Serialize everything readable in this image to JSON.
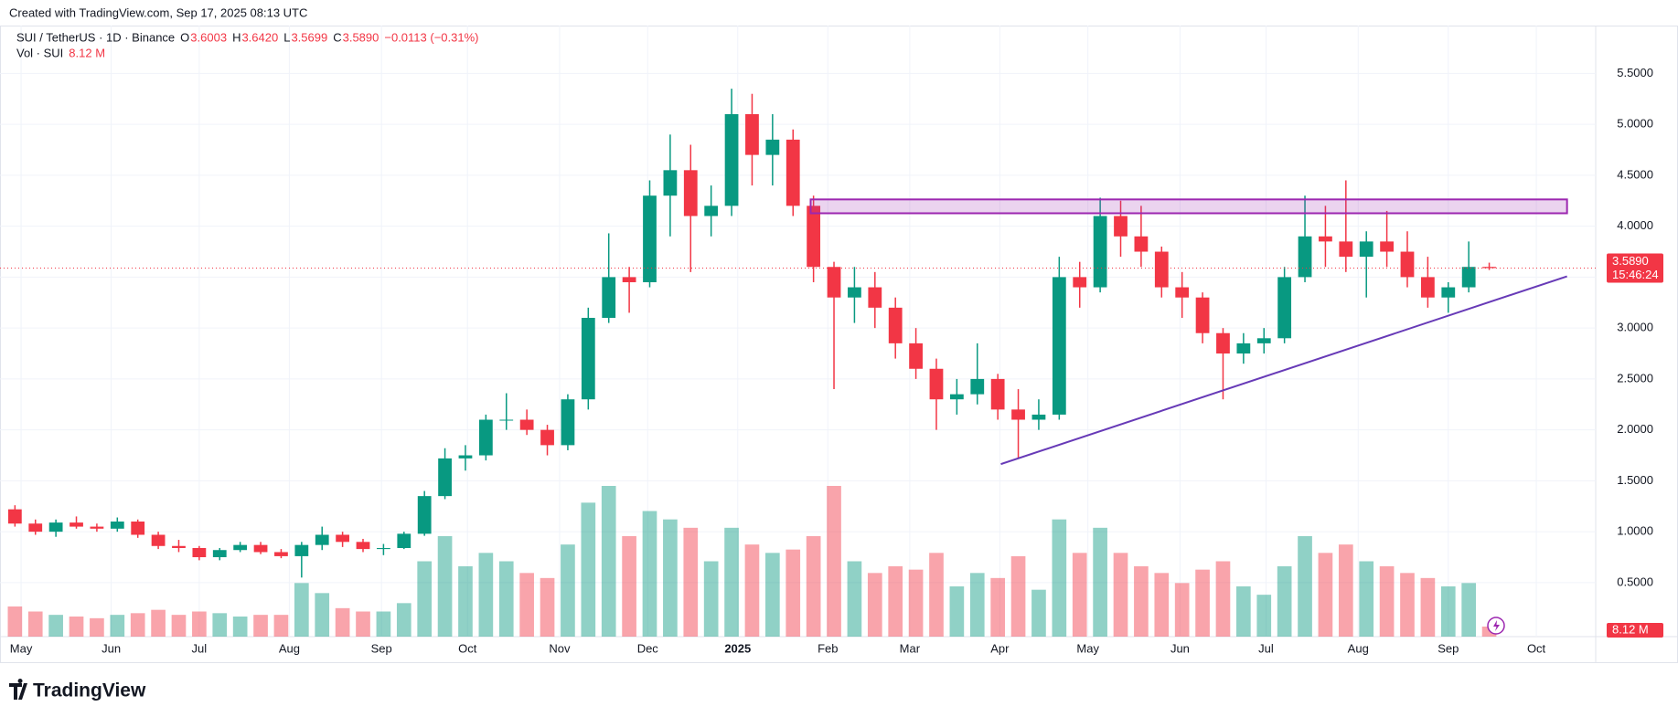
{
  "header": {
    "created": "Created with TradingView.com, Sep 17, 2025 08:13 UTC",
    "brand": "TradingView"
  },
  "chart_data": {
    "type": "candlestick",
    "legend": {
      "symbol": "SUI / TetherUS · 1D · Binance",
      "fields": [
        {
          "key": "O",
          "text": "3.6003"
        },
        {
          "key": "H",
          "text": "3.6420"
        },
        {
          "key": "L",
          "text": "3.5699"
        },
        {
          "key": "C",
          "text": "3.5890"
        }
      ],
      "change": "−0.0113 (−0.31%)",
      "volume_name": "Vol · SUI",
      "volume_text": "8.12 M"
    },
    "up_color": "#089981",
    "down_color": "#f23645",
    "ohlc": [
      [
        1.22,
        1.26,
        1.05,
        1.08
      ],
      [
        1.08,
        1.12,
        0.97,
        1.0
      ],
      [
        1.0,
        1.12,
        0.95,
        1.09
      ],
      [
        1.09,
        1.15,
        1.03,
        1.05
      ],
      [
        1.05,
        1.08,
        1.0,
        1.03
      ],
      [
        1.03,
        1.14,
        1.0,
        1.1
      ],
      [
        1.1,
        1.12,
        0.94,
        0.97
      ],
      [
        0.97,
        1.0,
        0.83,
        0.86
      ],
      [
        0.86,
        0.92,
        0.8,
        0.84
      ],
      [
        0.84,
        0.86,
        0.72,
        0.75
      ],
      [
        0.75,
        0.84,
        0.72,
        0.82
      ],
      [
        0.82,
        0.9,
        0.8,
        0.87
      ],
      [
        0.87,
        0.9,
        0.78,
        0.8
      ],
      [
        0.8,
        0.83,
        0.74,
        0.76
      ],
      [
        0.76,
        0.9,
        0.55,
        0.87
      ],
      [
        0.87,
        1.05,
        0.82,
        0.97
      ],
      [
        0.97,
        1.0,
        0.85,
        0.9
      ],
      [
        0.9,
        0.93,
        0.8,
        0.83
      ],
      [
        0.83,
        0.88,
        0.77,
        0.84
      ],
      [
        0.84,
        1.0,
        0.83,
        0.98
      ],
      [
        0.98,
        1.4,
        0.96,
        1.35
      ],
      [
        1.35,
        1.82,
        1.32,
        1.72
      ],
      [
        1.72,
        1.85,
        1.6,
        1.75
      ],
      [
        1.75,
        2.15,
        1.7,
        2.1
      ],
      [
        2.1,
        2.36,
        2.0,
        2.1
      ],
      [
        2.1,
        2.2,
        1.95,
        2.0
      ],
      [
        2.0,
        2.05,
        1.75,
        1.85
      ],
      [
        1.85,
        2.35,
        1.8,
        2.3
      ],
      [
        2.3,
        3.2,
        2.2,
        3.1
      ],
      [
        3.1,
        3.93,
        3.05,
        3.5
      ],
      [
        3.5,
        3.6,
        3.15,
        3.45
      ],
      [
        3.45,
        4.45,
        3.4,
        4.3
      ],
      [
        4.3,
        4.9,
        3.9,
        4.55
      ],
      [
        4.55,
        4.8,
        3.55,
        4.1
      ],
      [
        4.1,
        4.4,
        3.9,
        4.2
      ],
      [
        4.2,
        5.35,
        4.1,
        5.1
      ],
      [
        5.1,
        5.3,
        4.4,
        4.7
      ],
      [
        4.7,
        5.1,
        4.4,
        4.85
      ],
      [
        4.85,
        4.95,
        4.1,
        4.2
      ],
      [
        4.2,
        4.3,
        3.45,
        3.6
      ],
      [
        3.6,
        3.65,
        2.4,
        3.3
      ],
      [
        3.3,
        3.6,
        3.05,
        3.4
      ],
      [
        3.4,
        3.55,
        3.0,
        3.2
      ],
      [
        3.2,
        3.3,
        2.7,
        2.85
      ],
      [
        2.85,
        3.0,
        2.5,
        2.6
      ],
      [
        2.6,
        2.7,
        2.0,
        2.3
      ],
      [
        2.3,
        2.5,
        2.15,
        2.35
      ],
      [
        2.35,
        2.85,
        2.25,
        2.5
      ],
      [
        2.5,
        2.55,
        2.1,
        2.2
      ],
      [
        2.2,
        2.4,
        1.72,
        2.1
      ],
      [
        2.1,
        2.3,
        2.0,
        2.15
      ],
      [
        2.15,
        3.7,
        2.1,
        3.5
      ],
      [
        3.5,
        3.65,
        3.2,
        3.4
      ],
      [
        3.4,
        4.28,
        3.35,
        4.1
      ],
      [
        4.1,
        4.25,
        3.7,
        3.9
      ],
      [
        3.9,
        4.2,
        3.6,
        3.75
      ],
      [
        3.75,
        3.8,
        3.3,
        3.4
      ],
      [
        3.4,
        3.55,
        3.1,
        3.3
      ],
      [
        3.3,
        3.35,
        2.85,
        2.95
      ],
      [
        2.95,
        3.0,
        2.3,
        2.75
      ],
      [
        2.75,
        2.95,
        2.65,
        2.85
      ],
      [
        2.85,
        3.0,
        2.75,
        2.9
      ],
      [
        2.9,
        3.6,
        2.85,
        3.5
      ],
      [
        3.5,
        4.3,
        3.45,
        3.9
      ],
      [
        3.9,
        4.2,
        3.6,
        3.85
      ],
      [
        3.85,
        4.45,
        3.55,
        3.7
      ],
      [
        3.7,
        3.95,
        3.3,
        3.85
      ],
      [
        3.85,
        4.15,
        3.6,
        3.75
      ],
      [
        3.75,
        3.95,
        3.4,
        3.5
      ],
      [
        3.5,
        3.7,
        3.2,
        3.3
      ],
      [
        3.3,
        3.45,
        3.15,
        3.4
      ],
      [
        3.4,
        3.85,
        3.35,
        3.6003
      ],
      [
        3.6003,
        3.642,
        3.5699,
        3.589
      ]
    ],
    "volume": [
      180,
      150,
      130,
      120,
      110,
      130,
      140,
      160,
      130,
      150,
      140,
      120,
      130,
      130,
      320,
      260,
      170,
      150,
      150,
      200,
      450,
      600,
      420,
      500,
      450,
      380,
      350,
      550,
      800,
      900,
      600,
      750,
      700,
      650,
      450,
      650,
      550,
      500,
      520,
      600,
      900,
      450,
      380,
      420,
      400,
      500,
      300,
      380,
      350,
      480,
      280,
      700,
      500,
      650,
      500,
      420,
      380,
      320,
      400,
      450,
      300,
      250,
      420,
      600,
      500,
      550,
      450,
      420,
      380,
      350,
      300,
      320,
      60
    ],
    "xlim": [
      -0.73,
      77.2
    ],
    "xticks": [
      {
        "value": 0.3,
        "label": "May"
      },
      {
        "value": 4.7,
        "label": "Jun"
      },
      {
        "value": 9.0,
        "label": "Jul"
      },
      {
        "value": 13.4,
        "label": "Aug"
      },
      {
        "value": 17.9,
        "label": "Sep"
      },
      {
        "value": 22.1,
        "label": "Oct"
      },
      {
        "value": 26.6,
        "label": "Nov"
      },
      {
        "value": 30.9,
        "label": "Dec"
      },
      {
        "value": 35.3,
        "label": "2025"
      },
      {
        "value": 39.7,
        "label": "Feb"
      },
      {
        "value": 43.7,
        "label": "Mar"
      },
      {
        "value": 48.1,
        "label": "Apr"
      },
      {
        "value": 52.4,
        "label": "May"
      },
      {
        "value": 56.9,
        "label": "Jun"
      },
      {
        "value": 61.1,
        "label": "Jul"
      },
      {
        "value": 65.6,
        "label": "Aug"
      },
      {
        "value": 70.0,
        "label": "Sep"
      },
      {
        "value": 74.3,
        "label": "Oct"
      }
    ],
    "ylim": [
      -0.03,
      5.97
    ],
    "yticks": [
      {
        "value": 0.5,
        "label": "0.5000"
      },
      {
        "value": 1.0,
        "label": "1.0000"
      },
      {
        "value": 1.5,
        "label": "1.5000"
      },
      {
        "value": 2.0,
        "label": "2.0000"
      },
      {
        "value": 2.5,
        "label": "2.5000"
      },
      {
        "value": 3.0,
        "label": "3.0000"
      },
      {
        "value": 3.5,
        "label": "3.5000"
      },
      {
        "value": 4.0,
        "label": "4.0000"
      },
      {
        "value": 4.5,
        "label": "4.5000"
      },
      {
        "value": 5.0,
        "label": "5.0000"
      },
      {
        "value": 5.5,
        "label": "5.5000"
      }
    ],
    "grid": true,
    "last_price": {
      "value": 3.589,
      "label": "3.5890",
      "countdown": "15:46:24"
    },
    "drawings": {
      "zone": {
        "x": [
          38.86,
          75.8
        ],
        "y": [
          4.127,
          4.263
        ],
        "color": "#9c27b0"
      },
      "trendline": {
        "x": [
          48.15,
          75.8
        ],
        "y": [
          1.664,
          3.508
        ],
        "color": "#673ab7"
      }
    }
  }
}
